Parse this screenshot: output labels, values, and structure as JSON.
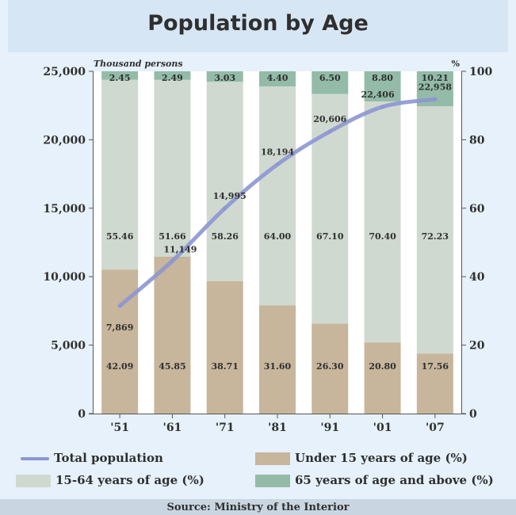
{
  "title": "Population by Age",
  "source": "Source: Ministry of the Interior",
  "colors": {
    "under15": "#c7b59c",
    "age15_64": "#cfd9d0",
    "age65plus": "#93bba8",
    "line": "#8c96d2",
    "background": "#e6f1fb",
    "gap": "#ffffff"
  },
  "chart_data": {
    "type": "bar",
    "stacked": true,
    "categories": [
      "'51",
      "'61",
      "'71",
      "'81",
      "'91",
      "'01",
      "'07"
    ],
    "left_axis": {
      "label": "Thousand persons",
      "range": [
        0,
        25000
      ],
      "ticks": [
        "0",
        "5,000",
        "10,000",
        "15,000",
        "20,000",
        "25,000"
      ],
      "tick_values": [
        0,
        5000,
        10000,
        15000,
        20000,
        25000
      ]
    },
    "right_axis": {
      "label": "%",
      "range": [
        0,
        100
      ],
      "ticks": [
        "0",
        "20",
        "40",
        "60",
        "80",
        "100"
      ],
      "tick_values": [
        0,
        20,
        40,
        60,
        80,
        100
      ]
    },
    "series": [
      {
        "name": "Under 15 years of age (%)",
        "axis": "right",
        "values": [
          42.09,
          45.85,
          38.71,
          31.6,
          26.3,
          20.8,
          17.56
        ],
        "labels": [
          "42.09",
          "45.85",
          "38.71",
          "31.60",
          "26.30",
          "20.80",
          "17.56"
        ]
      },
      {
        "name": "15-64 years of age (%)",
        "axis": "right",
        "values": [
          55.46,
          51.66,
          58.26,
          64.0,
          67.1,
          70.4,
          72.23
        ],
        "labels": [
          "55.46",
          "51.66",
          "58.26",
          "64.00",
          "67.10",
          "70.40",
          "72.23"
        ]
      },
      {
        "name": "65 years of age and above (%)",
        "axis": "right",
        "values": [
          2.45,
          2.49,
          3.03,
          4.4,
          6.5,
          8.8,
          10.21
        ],
        "labels": [
          "2.45",
          "2.49",
          "3.03",
          "4.40",
          "6.50",
          "8.80",
          "10.21"
        ]
      }
    ],
    "line": {
      "name": "Total population",
      "type": "line",
      "axis": "left",
      "values": [
        7869,
        11149,
        14995,
        18194,
        20606,
        22406,
        22958
      ],
      "labels": [
        "7,869",
        "11,149",
        "14,995",
        "18,194",
        "20,606",
        "22,406",
        "22,958"
      ]
    },
    "legend": {
      "placement": "bottom",
      "items": [
        "Total population",
        "Under 15 years of age (%)",
        "15-64 years of age (%)",
        "65 years of age and above (%)"
      ]
    },
    "grid": false
  }
}
